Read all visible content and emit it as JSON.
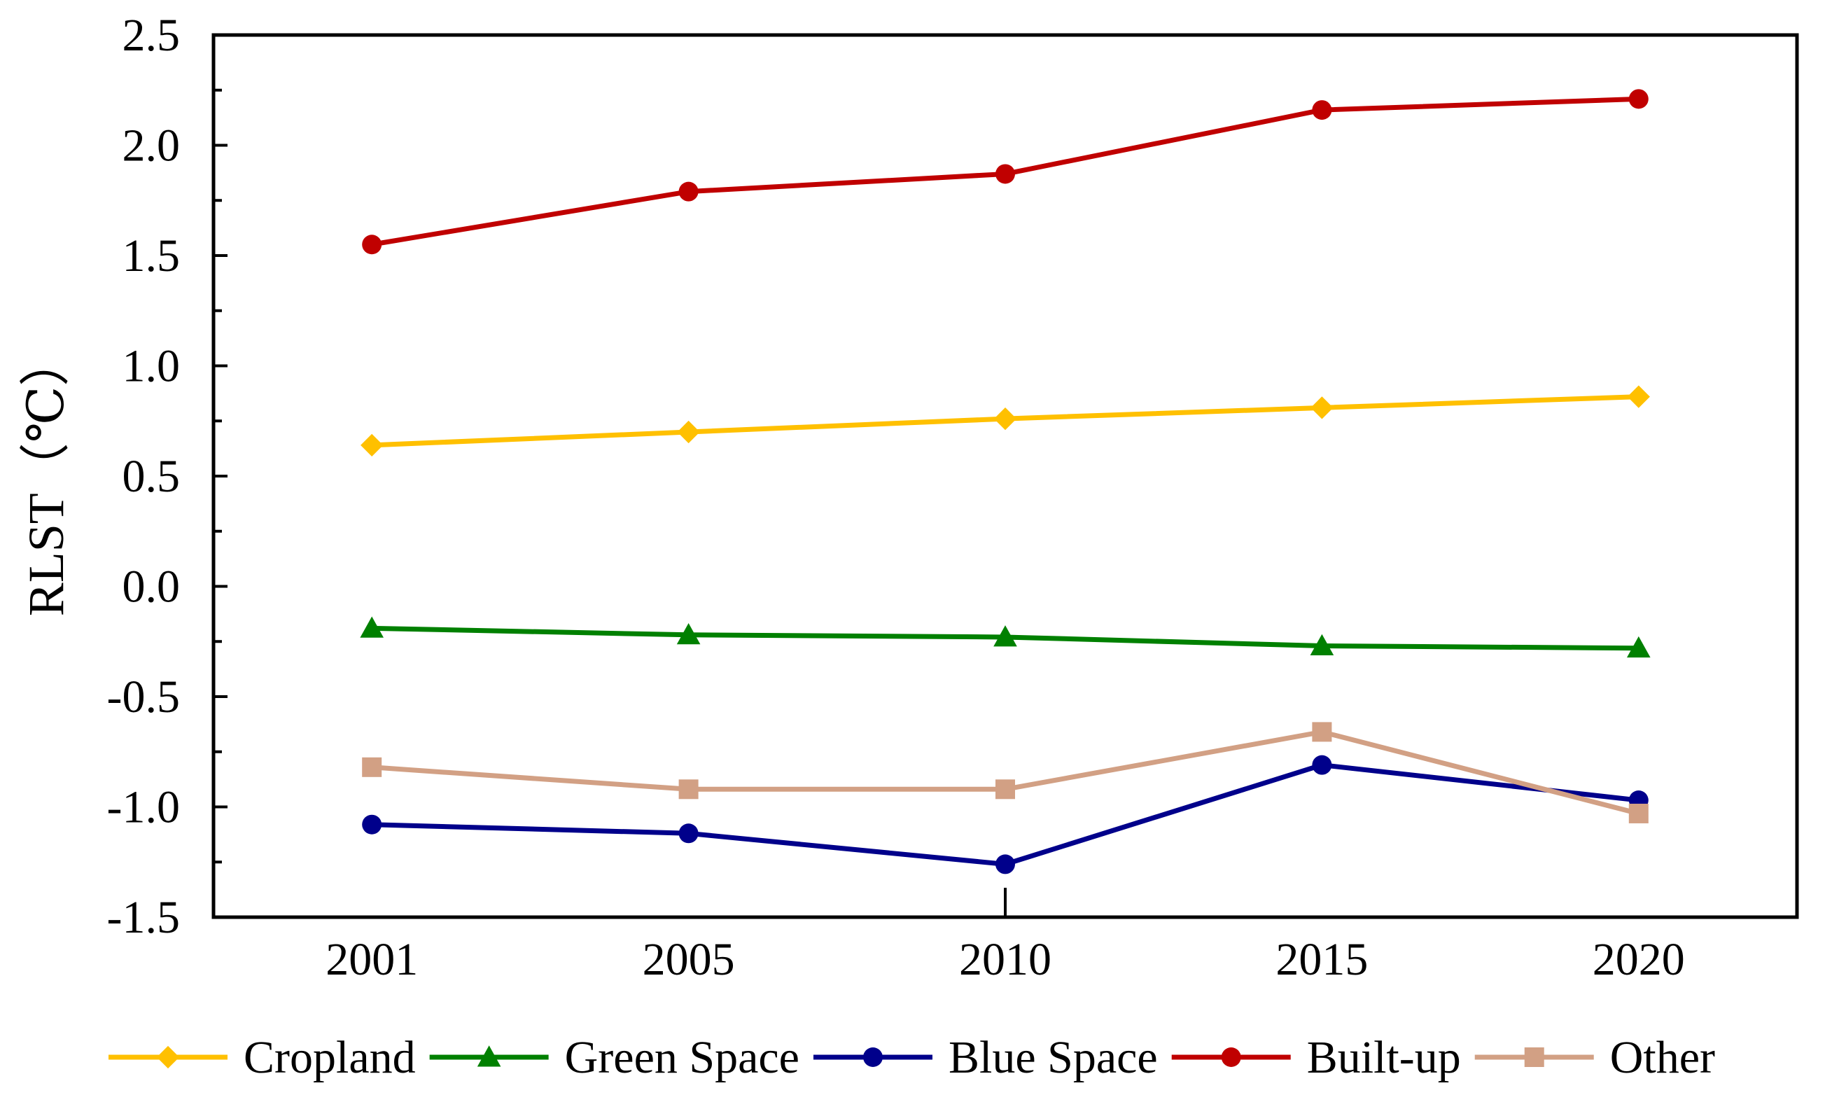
{
  "chart_data": {
    "type": "line",
    "title": "",
    "xlabel": "",
    "ylabel": "RLST（℃）",
    "categories": [
      "2001",
      "2005",
      "2010",
      "2015",
      "2020"
    ],
    "ylim": [
      -1.5,
      2.5
    ],
    "yticks": [
      "2.5",
      "2.0",
      "1.5",
      "1.0",
      "0.5",
      "0.0",
      "-0.5",
      "-1.0",
      "-1.5"
    ],
    "grid": false,
    "legend_position": "bottom",
    "series": [
      {
        "name": "Cropland",
        "color": "#FFC000",
        "marker": "diamond",
        "values": [
          0.64,
          0.7,
          0.76,
          0.81,
          0.86
        ]
      },
      {
        "name": "Green Space",
        "color": "#008000",
        "marker": "triangle",
        "values": [
          -0.19,
          -0.22,
          -0.23,
          -0.27,
          -0.28
        ]
      },
      {
        "name": "Blue Space",
        "color": "#00008B",
        "marker": "circle",
        "values": [
          -1.08,
          -1.12,
          -1.26,
          -0.81,
          -0.97
        ]
      },
      {
        "name": "Built-up",
        "color": "#C00000",
        "marker": "circle",
        "values": [
          1.55,
          1.79,
          1.87,
          2.16,
          2.21
        ]
      },
      {
        "name": "Other",
        "color": "#D2A084",
        "marker": "square",
        "values": [
          -0.82,
          -0.92,
          -0.92,
          -0.66,
          -1.03
        ]
      }
    ]
  }
}
